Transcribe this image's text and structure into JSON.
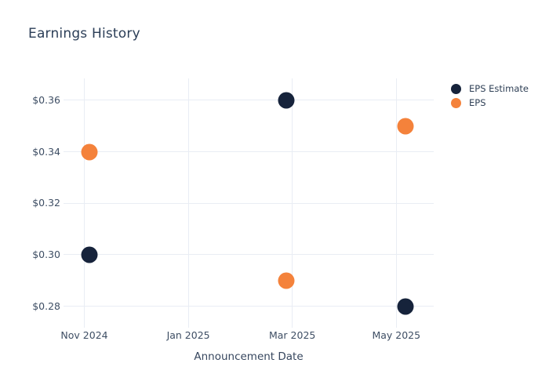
{
  "title": "Earnings History",
  "colors": {
    "navy": "#16233b",
    "orange": "#f4823b",
    "grid": "#e9edf4",
    "title_text": "#2b3e57",
    "tick_text": "#3e4e64"
  },
  "chart_data": {
    "type": "scatter",
    "title": "Earnings History",
    "xlabel": "Announcement Date",
    "ylabel": "",
    "grid": true,
    "legend_position": "right",
    "x_unit": "months_since_nov_2024",
    "x_range": [
      -0.4,
      6.72
    ],
    "y_range": [
      0.2735,
      0.3685
    ],
    "x_ticks": [
      {
        "x": 0,
        "label": "Nov 2024"
      },
      {
        "x": 2,
        "label": "Jan 2025"
      },
      {
        "x": 4,
        "label": "Mar 2025"
      },
      {
        "x": 6,
        "label": "May 2025"
      }
    ],
    "y_ticks": [
      {
        "v": 0.36,
        "label": "$0.36"
      },
      {
        "v": 0.34,
        "label": "$0.34"
      },
      {
        "v": 0.32,
        "label": "$0.32"
      },
      {
        "v": 0.3,
        "label": "$0.30"
      },
      {
        "v": 0.28,
        "label": "$0.28"
      }
    ],
    "series": [
      {
        "name": "EPS Estimate",
        "color": "#16233b",
        "points": [
          {
            "x": 0.1,
            "y": 0.3,
            "y_label": "$0.30"
          },
          {
            "x": 3.88,
            "y": 0.36,
            "y_label": "$0.36"
          },
          {
            "x": 6.18,
            "y": 0.28,
            "y_label": "$0.28"
          }
        ]
      },
      {
        "name": "EPS",
        "color": "#f4823b",
        "points": [
          {
            "x": 0.1,
            "y": 0.34,
            "y_label": "$0.34"
          },
          {
            "x": 3.88,
            "y": 0.29,
            "y_label": "$0.29"
          },
          {
            "x": 6.18,
            "y": 0.35,
            "y_label": "$0.35"
          }
        ]
      }
    ]
  }
}
